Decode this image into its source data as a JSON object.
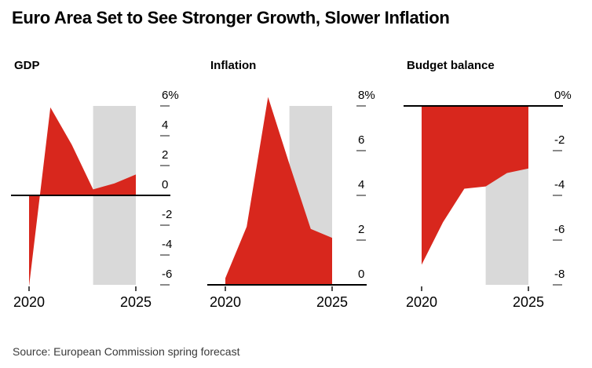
{
  "page": {
    "title": "Euro Area Set to See Stronger Growth, Slower Inflation",
    "source": "Source: European Commission spring forecast"
  },
  "colors": {
    "area_red": "#d8271d",
    "forecast_band_gray": "#d9d9d9",
    "baseline_black": "#000000",
    "tick_dash_gray": "#8a8a8a",
    "x_tick_gray": "#4d4d4d",
    "label_black": "#000000"
  },
  "chart_data": [
    {
      "type": "area",
      "title": "GDP",
      "unit": "%",
      "x": [
        2020,
        2021,
        2022,
        2023,
        2024,
        2025
      ],
      "values": [
        -6.1,
        5.9,
        3.4,
        0.4,
        0.8,
        1.4
      ],
      "baseline_value": 0,
      "yticks": [
        6,
        4,
        2,
        0,
        -2,
        -4,
        -6
      ],
      "ytick_labels": [
        "6%",
        "4",
        "2",
        "0",
        "-2",
        "-4",
        "-6"
      ],
      "ylim": [
        -6,
        6
      ],
      "xticks": [
        2020,
        2025
      ],
      "xtick_labels": [
        "2020",
        "2025"
      ],
      "forecast_band_x": [
        2023,
        2025
      ],
      "grid": "off",
      "legend": "none"
    },
    {
      "type": "area",
      "title": "Inflation",
      "unit": "%",
      "x": [
        2020,
        2021,
        2022,
        2023,
        2024,
        2025
      ],
      "values": [
        0.3,
        2.6,
        8.4,
        5.4,
        2.5,
        2.1
      ],
      "baseline_value": 0,
      "yticks": [
        8,
        6,
        4,
        2,
        0
      ],
      "ytick_labels": [
        "8%",
        "6",
        "4",
        "2",
        "0"
      ],
      "ylim": [
        0,
        8
      ],
      "xticks": [
        2020,
        2025
      ],
      "xtick_labels": [
        "2020",
        "2025"
      ],
      "forecast_band_x": [
        2023,
        2025
      ],
      "grid": "off",
      "legend": "none"
    },
    {
      "type": "area",
      "title": "Budget balance",
      "unit": "%",
      "x": [
        2020,
        2021,
        2022,
        2023,
        2024,
        2025
      ],
      "values": [
        -7.1,
        -5.2,
        -3.7,
        -3.6,
        -3.0,
        -2.8
      ],
      "baseline_value": 0,
      "yticks": [
        0,
        -2,
        -4,
        -6,
        -8
      ],
      "ytick_labels": [
        "0%",
        "-2",
        "-4",
        "-6",
        "-8"
      ],
      "ylim": [
        -8,
        0
      ],
      "xticks": [
        2020,
        2025
      ],
      "xtick_labels": [
        "2020",
        "2025"
      ],
      "forecast_band_x": [
        2023,
        2025
      ],
      "grid": "off",
      "legend": "none"
    }
  ]
}
